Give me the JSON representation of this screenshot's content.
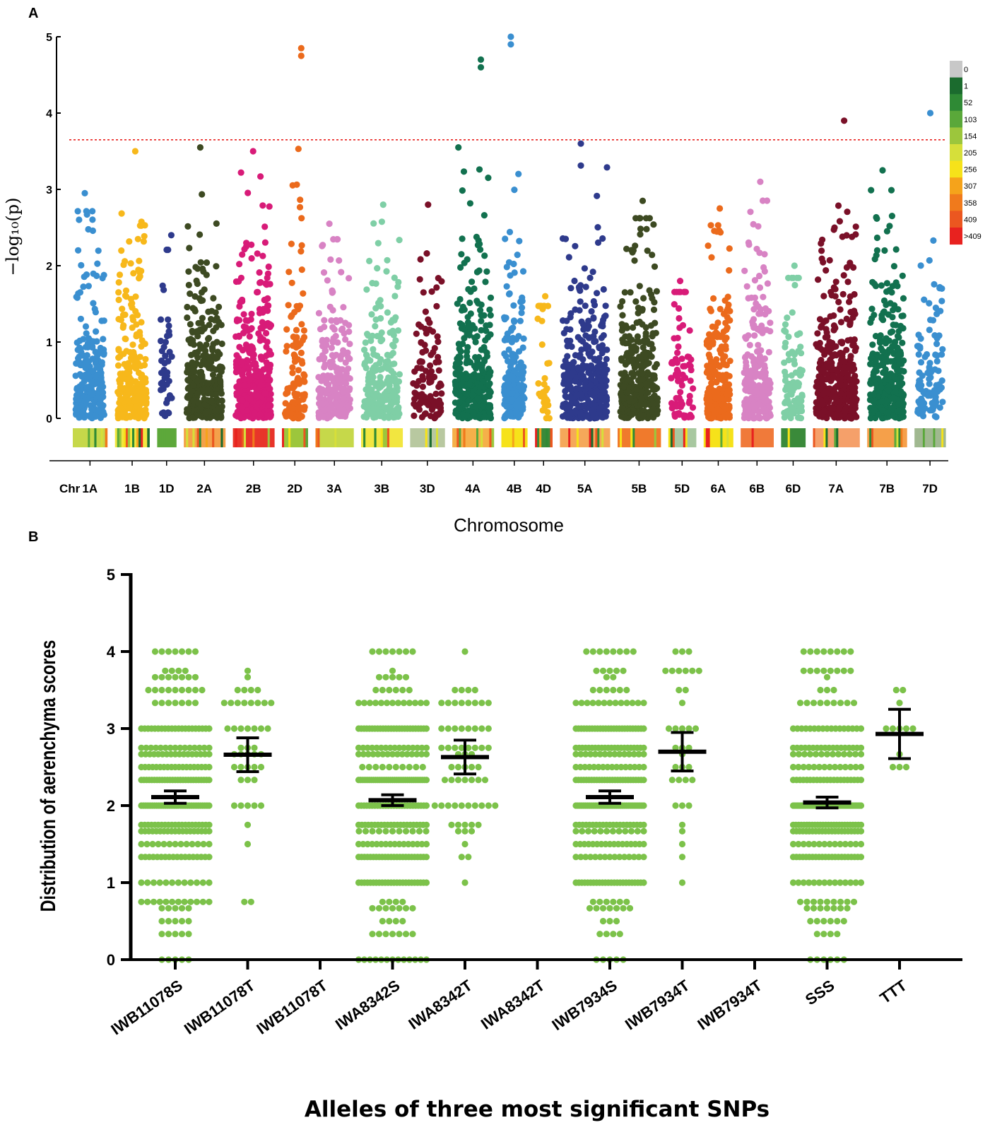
{
  "panel_a_letter": "A",
  "panel_b_letter": "B",
  "chart_data": [
    {
      "type": "scatter",
      "kind": "manhattan",
      "title": "",
      "xlabel": "Chromosome",
      "ylabel": "−log₁₀(p)",
      "ylim": [
        0,
        5
      ],
      "yticks": [
        "0",
        "1",
        "2",
        "3",
        "4",
        "5"
      ],
      "x_prefix": "Chr",
      "threshold": 3.65,
      "chromosomes": [
        {
          "name": "1A",
          "color": "#3a8fd0",
          "size": 1.0,
          "peak": 2.95,
          "n": 240
        },
        {
          "name": "1B",
          "color": "#f7b81b",
          "size": 1.0,
          "peak": 3.5,
          "n": 240
        },
        {
          "name": "1D",
          "color": "#2e3a8c",
          "size": 0.55,
          "peak": 2.4,
          "n": 45
        },
        {
          "name": "2A",
          "color": "#3d4a22",
          "size": 1.2,
          "peak": 3.55,
          "n": 330
        },
        {
          "name": "2B",
          "color": "#d81b78",
          "size": 1.2,
          "peak": 3.5,
          "n": 380
        },
        {
          "name": "2D",
          "color": "#eb6a1c",
          "size": 0.75,
          "peak": 4.85,
          "n": 110
        },
        {
          "name": "3A",
          "color": "#d883c4",
          "size": 1.1,
          "peak": 2.55,
          "n": 240
        },
        {
          "name": "3B",
          "color": "#7fcfa6",
          "size": 1.2,
          "peak": 2.8,
          "n": 250
        },
        {
          "name": "3D",
          "color": "#7a1028",
          "size": 1.0,
          "peak": 2.8,
          "n": 110
        },
        {
          "name": "4A",
          "color": "#12714f",
          "size": 1.2,
          "peak": 4.7,
          "n": 320
        },
        {
          "name": "4B",
          "color": "#3a8fd0",
          "size": 0.75,
          "peak": 5.0,
          "n": 200
        },
        {
          "name": "4D",
          "color": "#f7b81b",
          "size": 0.5,
          "peak": 1.6,
          "n": 35
        },
        {
          "name": "5A",
          "color": "#2e3a8c",
          "size": 1.45,
          "peak": 3.6,
          "n": 360
        },
        {
          "name": "5B",
          "color": "#3d4a22",
          "size": 1.25,
          "peak": 2.85,
          "n": 330
        },
        {
          "name": "5D",
          "color": "#d81b78",
          "size": 0.8,
          "peak": 1.8,
          "n": 70
        },
        {
          "name": "6A",
          "color": "#eb6a1c",
          "size": 0.85,
          "peak": 2.75,
          "n": 230
        },
        {
          "name": "6B",
          "color": "#d883c4",
          "size": 0.95,
          "peak": 3.1,
          "n": 230
        },
        {
          "name": "6D",
          "color": "#7fcfa6",
          "size": 0.7,
          "peak": 2.0,
          "n": 90
        },
        {
          "name": "7A",
          "color": "#7a1028",
          "size": 1.35,
          "peak": 3.9,
          "n": 380
        },
        {
          "name": "7B",
          "color": "#12714f",
          "size": 1.15,
          "peak": 3.25,
          "n": 320
        },
        {
          "name": "7D",
          "color": "#3a8fd0",
          "size": 0.9,
          "peak": 4.0,
          "n": 110
        }
      ],
      "density_legend": {
        "labels": [
          "0",
          "1",
          "52",
          "103",
          "154",
          "205",
          "256",
          "307",
          "358",
          "409",
          ">409"
        ],
        "colors": [
          "#c8c8c8",
          "#1b6b2e",
          "#2f8a35",
          "#5aa83a",
          "#9cc63c",
          "#d6df3a",
          "#f6e21a",
          "#f5a31b",
          "#f07a1c",
          "#eb5720",
          "#e8221f"
        ]
      },
      "density_strip_colors": [
        "#c6d84a",
        "#f2e640",
        "#5da83a",
        "#f4a14a",
        "#e8352a",
        "#9cc63c",
        "#c6d84a",
        "#f2e640",
        "#b8c8a0",
        "#f5b04a",
        "#f6e21a",
        "#3a8a3a",
        "#f5a85a",
        "#f07a2c",
        "#a8c8a0",
        "#f6e21a",
        "#f07a3a",
        "#3a8a3a",
        "#f5a06a",
        "#f5a04a",
        "#a0b890"
      ]
    },
    {
      "type": "scatter",
      "kind": "beeswarm",
      "title": "",
      "xlabel": "Alleles of three most significant SNPs",
      "ylabel": "Distribution of aerenchyma scores",
      "ylim": [
        0,
        5
      ],
      "yticks": [
        "0",
        "1",
        "2",
        "3",
        "4",
        "5"
      ],
      "point_color": "#7cc24a",
      "categories": [
        {
          "name": "IWB11078S",
          "n": 280,
          "mean": 2.11,
          "err": 0.08,
          "sd": 0.95
        },
        {
          "name": "IWB11078T",
          "n": 46,
          "mean": 2.66,
          "err": 0.22,
          "sd": 0.7
        },
        {
          "name": "IWB11078T",
          "n": 0,
          "mean": null,
          "err": null,
          "sd": null
        },
        {
          "name": "IWA8342S",
          "n": 290,
          "mean": 2.07,
          "err": 0.07,
          "sd": 0.95
        },
        {
          "name": "IWA8342T",
          "n": 66,
          "mean": 2.63,
          "err": 0.22,
          "sd": 0.7
        },
        {
          "name": "IWA8342T",
          "n": 0,
          "mean": null,
          "err": null,
          "sd": null
        },
        {
          "name": "IWB7934S",
          "n": 290,
          "mean": 2.11,
          "err": 0.08,
          "sd": 0.95
        },
        {
          "name": "IWB7934T",
          "n": 36,
          "mean": 2.7,
          "err": 0.25,
          "sd": 0.75
        },
        {
          "name": "IWB7934T",
          "n": 0,
          "mean": null,
          "err": null,
          "sd": null
        },
        {
          "name": "SSS",
          "n": 290,
          "mean": 2.04,
          "err": 0.07,
          "sd": 0.95
        },
        {
          "name": "TTT",
          "n": 12,
          "mean": 2.93,
          "err": 0.32,
          "sd": 0.35
        }
      ]
    }
  ]
}
